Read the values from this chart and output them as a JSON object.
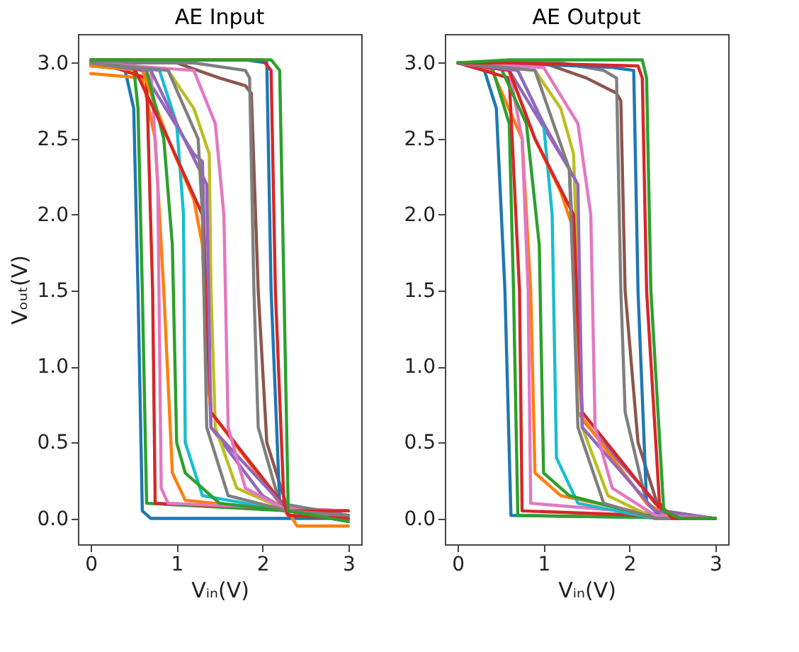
{
  "chart_data": [
    {
      "type": "line",
      "title": "AE Input",
      "xlabel": "Vᵢₙ(V)",
      "ylabel": "Vₒᵤₜ(V)",
      "grid": false,
      "xlim": [
        -0.15,
        3.15
      ],
      "ylim": [
        -0.17,
        3.19
      ],
      "xticks": [
        0,
        1,
        2,
        3
      ],
      "yticks": [
        {
          "value": 0,
          "label": "0.0"
        },
        0.5,
        {
          "value": 1,
          "label": "1.0"
        },
        1.5,
        {
          "value": 2,
          "label": "2.0"
        },
        2.5,
        {
          "value": 3,
          "label": "3.0"
        }
      ],
      "series": [
        {
          "color": "#1f77b4",
          "x": [
            0,
            0.4,
            0.5,
            0.55,
            0.6,
            0.7,
            2.3,
            3
          ],
          "values": [
            3.0,
            2.95,
            2.7,
            1.5,
            0.05,
            0.0,
            0.0,
            0.0
          ]
        },
        {
          "color": "#ff7f0e",
          "x": [
            0,
            0.6,
            0.75,
            0.85,
            0.95,
            1.1,
            2.3,
            2.4,
            3
          ],
          "values": [
            2.93,
            2.9,
            2.5,
            1.5,
            0.3,
            0.12,
            0.05,
            -0.05,
            -0.05
          ]
        },
        {
          "color": "#2ca02c",
          "x": [
            0,
            0.5,
            0.55,
            0.6,
            0.65,
            2.3,
            3
          ],
          "values": [
            3.0,
            2.97,
            2.7,
            1.5,
            0.1,
            0.05,
            0.0
          ]
        },
        {
          "color": "#d62728",
          "x": [
            0,
            0.65,
            0.72,
            0.75,
            3
          ],
          "values": [
            3.02,
            2.9,
            1.5,
            0.1,
            0.05
          ]
        },
        {
          "color": "#9467bd",
          "x": [
            0,
            0.6,
            1.2,
            1.3,
            1.35,
            1.4,
            2.0,
            2.3,
            3
          ],
          "values": [
            2.98,
            2.95,
            2.4,
            2.35,
            1.3,
            0.6,
            0.15,
            0.05,
            0.02
          ]
        },
        {
          "color": "#8c564b",
          "x": [
            0,
            1.0,
            1.5,
            1.8,
            1.87,
            1.95,
            2.05,
            2.3,
            3
          ],
          "values": [
            3.0,
            3.0,
            2.9,
            2.85,
            2.8,
            1.5,
            0.5,
            0.05,
            0.05
          ]
        },
        {
          "color": "#e377c2",
          "x": [
            0,
            0.7,
            0.78,
            0.82,
            0.9,
            3
          ],
          "values": [
            3.0,
            2.95,
            2.2,
            0.2,
            0.1,
            0.05
          ]
        },
        {
          "color": "#7f7f7f",
          "x": [
            0,
            1.2,
            1.8,
            1.85,
            1.9,
            1.95,
            2.2,
            3
          ],
          "values": [
            3.0,
            3.0,
            2.95,
            2.9,
            1.5,
            0.6,
            0.1,
            0.02
          ]
        },
        {
          "color": "#bcbd22",
          "x": [
            0,
            0.9,
            1.2,
            1.38,
            1.4,
            1.45,
            1.7,
            2.3,
            3
          ],
          "values": [
            3.0,
            2.95,
            2.7,
            2.4,
            1.5,
            0.6,
            0.2,
            0.05,
            0.0
          ]
        },
        {
          "color": "#17becf",
          "x": [
            0,
            0.8,
            1.0,
            1.08,
            1.1,
            1.3,
            2.3,
            3
          ],
          "values": [
            3.0,
            2.95,
            2.6,
            2.0,
            0.5,
            0.15,
            0.05,
            0.0
          ]
        },
        {
          "color": "#1f77b4",
          "x": [
            0,
            1.8,
            2.05,
            2.1,
            2.2,
            2.3,
            3
          ],
          "values": [
            3.02,
            3.02,
            3.0,
            1.5,
            0.1,
            0.02,
            0.0
          ]
        },
        {
          "color": "#ff7f0e",
          "x": [
            0,
            0.6,
            0.9,
            1.2,
            1.3,
            1.35,
            1.4,
            2.2,
            2.3,
            3
          ],
          "values": [
            2.98,
            2.95,
            2.5,
            2.1,
            1.8,
            1.0,
            0.7,
            0.1,
            0.02,
            0.0
          ]
        },
        {
          "color": "#2ca02c",
          "x": [
            0,
            0.65,
            0.85,
            0.95,
            1.0,
            1.1,
            1.5,
            2.3,
            3
          ],
          "values": [
            3.0,
            2.95,
            2.5,
            1.8,
            0.5,
            0.3,
            0.1,
            0.05,
            -0.02
          ]
        },
        {
          "color": "#d62728",
          "x": [
            0,
            0.5,
            0.9,
            1.3,
            1.35,
            1.4,
            2.3,
            3
          ],
          "values": [
            3.0,
            2.97,
            2.5,
            2.0,
            1.3,
            0.7,
            0.05,
            0.05
          ]
        },
        {
          "color": "#9467bd",
          "x": [
            0,
            0.7,
            1.0,
            1.35,
            1.4,
            2.3,
            3
          ],
          "values": [
            3.0,
            2.95,
            2.6,
            2.2,
            0.6,
            0.05,
            0.0
          ]
        },
        {
          "color": "#e377c2",
          "x": [
            0,
            1.2,
            1.45,
            1.55,
            1.6,
            1.8,
            2.3,
            3
          ],
          "values": [
            3.0,
            2.95,
            2.6,
            2.0,
            0.6,
            0.2,
            0.05,
            0.0
          ]
        },
        {
          "color": "#7f7f7f",
          "x": [
            0,
            0.9,
            1.25,
            1.3,
            1.35,
            1.6,
            2.3,
            3
          ],
          "values": [
            3.0,
            2.95,
            2.5,
            2.0,
            0.6,
            0.15,
            0.05,
            0.02
          ]
        },
        {
          "color": "#d62728",
          "x": [
            0,
            2.0,
            2.1,
            2.15,
            2.25,
            2.3,
            3
          ],
          "values": [
            3.02,
            3.02,
            2.95,
            1.5,
            0.1,
            0.02,
            0.0
          ]
        },
        {
          "color": "#2ca02c",
          "x": [
            0,
            2.1,
            2.2,
            2.25,
            2.3,
            3
          ],
          "values": [
            3.02,
            3.02,
            2.95,
            1.5,
            0.05,
            -0.02
          ]
        }
      ]
    },
    {
      "type": "line",
      "title": "AE Output",
      "xlabel": "Vᵢₙ(V)",
      "grid": false,
      "xlim": [
        -0.15,
        3.15
      ],
      "ylim": [
        -0.17,
        3.19
      ],
      "xticks": [
        0,
        1,
        2,
        3
      ],
      "yticks": [
        {
          "value": 0,
          "label": "0.0"
        },
        0.5,
        {
          "value": 1,
          "label": "1.0"
        },
        1.5,
        {
          "value": 2,
          "label": "2.0"
        },
        2.5,
        {
          "value": 3,
          "label": "3.0"
        }
      ],
      "series": [
        {
          "color": "#1f77b4",
          "x": [
            0,
            0.3,
            0.45,
            0.55,
            0.62,
            3
          ],
          "values": [
            3.0,
            2.97,
            2.7,
            1.5,
            0.02,
            0.0
          ]
        },
        {
          "color": "#ff7f0e",
          "x": [
            0,
            0.4,
            0.75,
            0.85,
            0.9,
            1.2,
            2.2,
            2.6,
            3
          ],
          "values": [
            3.0,
            2.95,
            2.5,
            1.5,
            0.3,
            0.15,
            0.03,
            0.0,
            0.0
          ]
        },
        {
          "color": "#2ca02c",
          "x": [
            0,
            0.4,
            0.6,
            0.65,
            0.7,
            3
          ],
          "values": [
            3.0,
            2.97,
            2.6,
            1.5,
            0.02,
            0.0
          ]
        },
        {
          "color": "#d62728",
          "x": [
            0,
            0.6,
            0.72,
            0.75,
            2.2,
            3
          ],
          "values": [
            3.0,
            2.9,
            1.5,
            0.05,
            0.02,
            0.0
          ]
        },
        {
          "color": "#9467bd",
          "x": [
            0,
            0.6,
            1.3,
            1.4,
            1.45,
            2.0,
            2.4,
            3
          ],
          "values": [
            3.0,
            2.95,
            2.3,
            1.2,
            0.65,
            0.3,
            0.05,
            0.0
          ]
        },
        {
          "color": "#8c564b",
          "x": [
            0,
            1.0,
            1.5,
            1.85,
            1.9,
            1.95,
            2.1,
            2.35,
            3
          ],
          "values": [
            3.0,
            3.0,
            2.9,
            2.8,
            2.75,
            1.5,
            0.5,
            0.05,
            0.0
          ]
        },
        {
          "color": "#e377c2",
          "x": [
            0,
            0.6,
            0.75,
            0.82,
            0.85,
            3
          ],
          "values": [
            3.0,
            2.95,
            2.5,
            1.5,
            0.1,
            0.0
          ]
        },
        {
          "color": "#7f7f7f",
          "x": [
            0,
            1.2,
            1.7,
            1.85,
            1.9,
            1.95,
            2.2,
            2.5,
            3
          ],
          "values": [
            3.0,
            3.0,
            2.95,
            2.9,
            1.5,
            0.7,
            0.1,
            0.0,
            0.0
          ]
        },
        {
          "color": "#bcbd22",
          "x": [
            0,
            0.9,
            1.2,
            1.35,
            1.4,
            1.45,
            1.75,
            2.3,
            3
          ],
          "values": [
            3.0,
            2.95,
            2.7,
            2.4,
            1.5,
            0.6,
            0.15,
            0.0,
            0.0
          ]
        },
        {
          "color": "#17becf",
          "x": [
            0,
            0.7,
            1.0,
            1.1,
            1.15,
            1.4,
            2.3,
            3
          ],
          "values": [
            3.0,
            2.95,
            2.6,
            2.0,
            0.4,
            0.1,
            0.0,
            0.0
          ]
        },
        {
          "color": "#1f77b4",
          "x": [
            0,
            0.5,
            1.8,
            2.05,
            2.1,
            2.2,
            2.4,
            3
          ],
          "values": [
            3.0,
            3.0,
            2.97,
            2.95,
            1.5,
            0.1,
            0.0,
            0.0
          ]
        },
        {
          "color": "#ff7f0e",
          "x": [
            0,
            0.6,
            0.9,
            1.2,
            1.35,
            1.4,
            2.2,
            2.5,
            3
          ],
          "values": [
            3.0,
            2.95,
            2.5,
            2.15,
            1.9,
            0.7,
            0.1,
            0.0,
            0.0
          ]
        },
        {
          "color": "#2ca02c",
          "x": [
            0,
            0.5,
            0.8,
            0.95,
            1.0,
            1.3,
            2.2,
            3
          ],
          "values": [
            3.0,
            2.97,
            2.6,
            1.8,
            0.3,
            0.15,
            0.02,
            0.0
          ]
        },
        {
          "color": "#d62728",
          "x": [
            0,
            0.6,
            0.9,
            1.35,
            1.4,
            1.45,
            2.3,
            2.5,
            3
          ],
          "values": [
            3.0,
            2.95,
            2.5,
            2.0,
            1.3,
            0.7,
            0.1,
            0.0,
            0.0
          ]
        },
        {
          "color": "#9467bd",
          "x": [
            0,
            0.7,
            1.0,
            1.4,
            1.45,
            2.3,
            3
          ],
          "values": [
            3.0,
            2.95,
            2.6,
            2.2,
            0.6,
            0.05,
            0.0
          ]
        },
        {
          "color": "#e377c2",
          "x": [
            0,
            1.0,
            1.4,
            1.55,
            1.6,
            1.8,
            2.3,
            3
          ],
          "values": [
            3.0,
            2.97,
            2.6,
            2.0,
            0.6,
            0.2,
            0.02,
            0.0
          ]
        },
        {
          "color": "#7f7f7f",
          "x": [
            0,
            0.9,
            1.3,
            1.35,
            1.4,
            1.7,
            2.3,
            3
          ],
          "values": [
            3.0,
            2.95,
            2.3,
            1.5,
            0.6,
            0.1,
            0.0,
            0.0
          ]
        },
        {
          "color": "#d62728",
          "x": [
            0,
            0.6,
            2.1,
            2.15,
            2.2,
            2.35,
            2.5,
            3
          ],
          "values": [
            3.0,
            3.0,
            2.98,
            2.9,
            1.5,
            0.1,
            0.0,
            0.0
          ]
        },
        {
          "color": "#2ca02c",
          "x": [
            0,
            0.6,
            2.15,
            2.2,
            2.25,
            2.4,
            2.6,
            3
          ],
          "values": [
            3.0,
            3.02,
            3.02,
            2.9,
            1.5,
            0.05,
            0.0,
            0.0
          ]
        }
      ]
    }
  ]
}
